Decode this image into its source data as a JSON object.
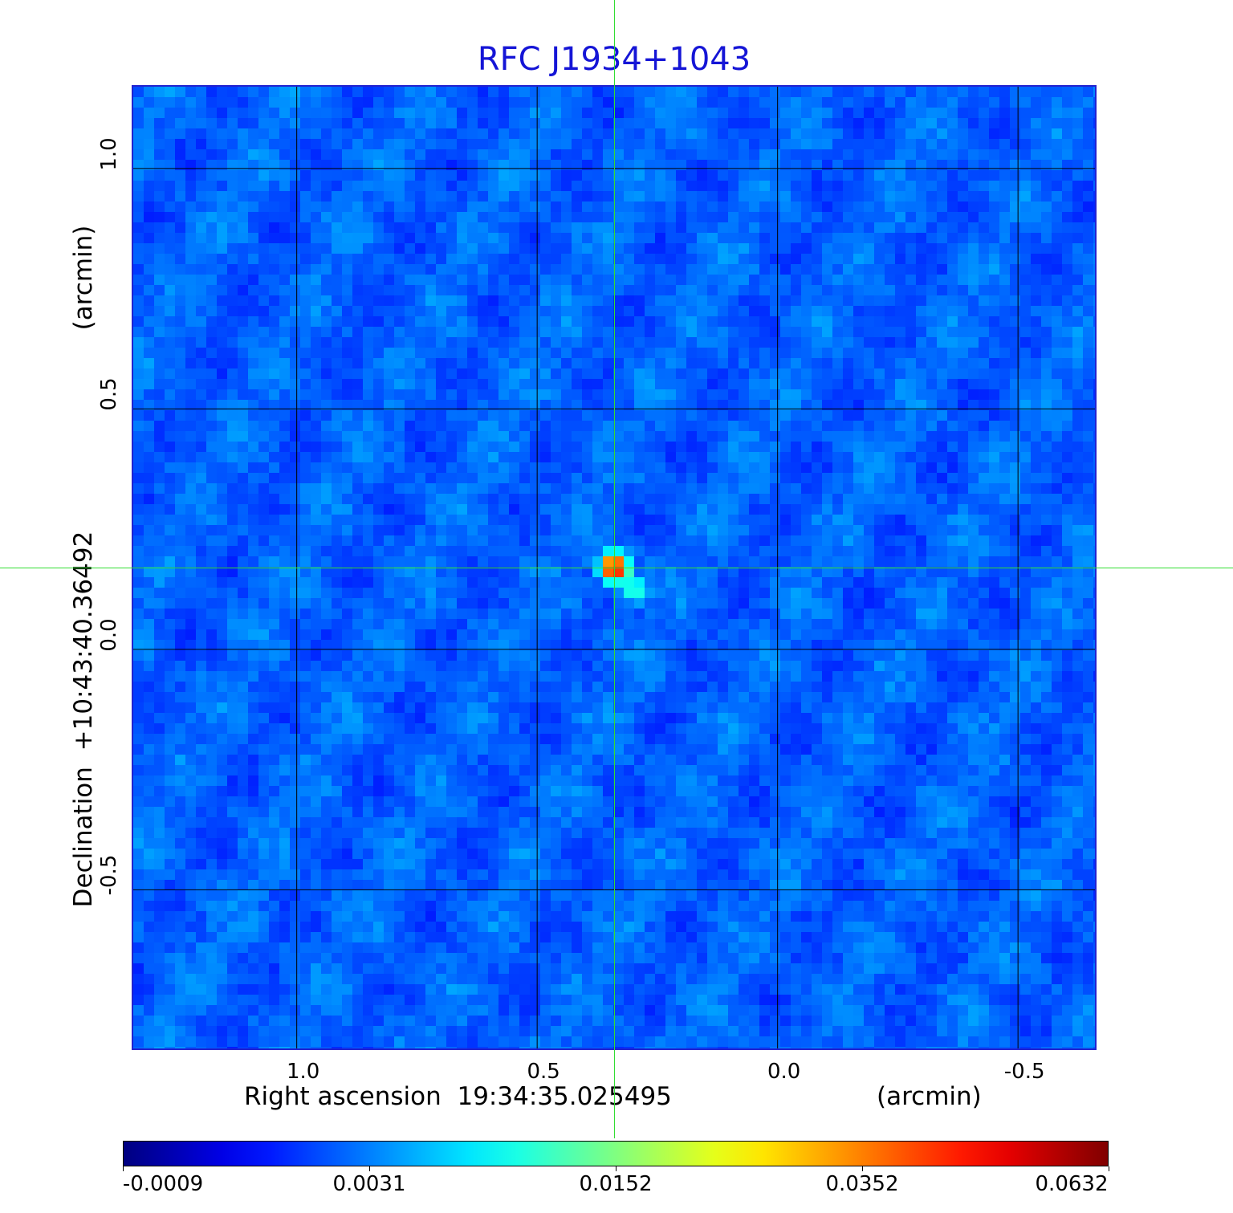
{
  "chart_data": {
    "type": "heatmap",
    "title": "RFC J1934+1043",
    "xlabel": "Right ascension  19:34:35.025495",
    "xunit": "(arcmin)",
    "ylabel": "Declination  +10:43:40.36492",
    "yunit": "(arcmin)",
    "xlim": [
      1.34,
      -0.66
    ],
    "ylim": [
      -0.83,
      1.17
    ],
    "x_ticks": [
      "1.0",
      "0.5",
      "0.0",
      "-0.5"
    ],
    "x_tick_values": [
      1.0,
      0.5,
      0.0,
      -0.5
    ],
    "y_ticks": [
      "1.0",
      "0.5",
      "0.0",
      "-0.5"
    ],
    "y_tick_values": [
      1.0,
      0.5,
      0.0,
      -0.5
    ],
    "grid": true,
    "colormap": "jet",
    "colorbar_ticks": [
      "-0.0009",
      "0.0031",
      "0.0152",
      "0.0352",
      "0.0632"
    ],
    "color_range": [
      -0.0009,
      0.0632
    ],
    "source_peak": {
      "x": 0.34,
      "y": 0.17,
      "value": 0.0632
    },
    "crosshair": {
      "x": 0.34,
      "y": 0.17
    }
  }
}
